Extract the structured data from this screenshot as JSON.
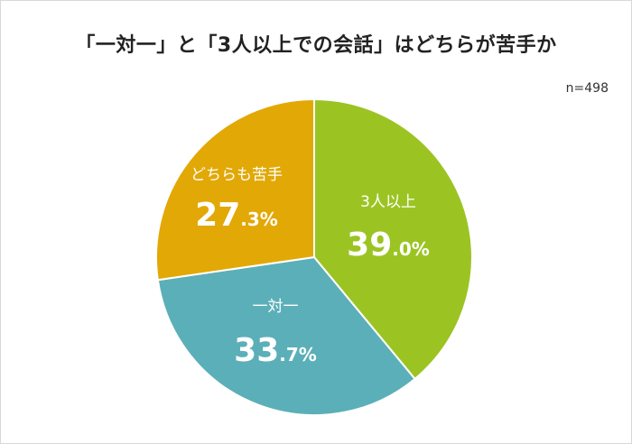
{
  "title": "「一対一」と「3人以上での会話」はどちらが苦手か",
  "sample_size": "n=498",
  "colors": {
    "three_plus": "#9bc423",
    "one_on_one": "#5bafb8",
    "both": "#e2a806",
    "border": "#ffffff",
    "label": "#ffffff"
  },
  "chart_data": {
    "type": "pie",
    "title": "「一対一」と「3人以上での会話」はどちらが苦手か",
    "note": "n=498",
    "slices": [
      {
        "label": "3人以上",
        "value": 39.0,
        "int": "39",
        "dec": ".0%",
        "color": "#9bc423"
      },
      {
        "label": "一対一",
        "value": 33.7,
        "int": "33",
        "dec": ".7%",
        "color": "#5bafb8"
      },
      {
        "label": "どちらも苦手",
        "value": 27.3,
        "int": "27",
        "dec": ".3%",
        "color": "#e2a806"
      }
    ],
    "start": "12 o'clock",
    "direction": "clockwise"
  }
}
